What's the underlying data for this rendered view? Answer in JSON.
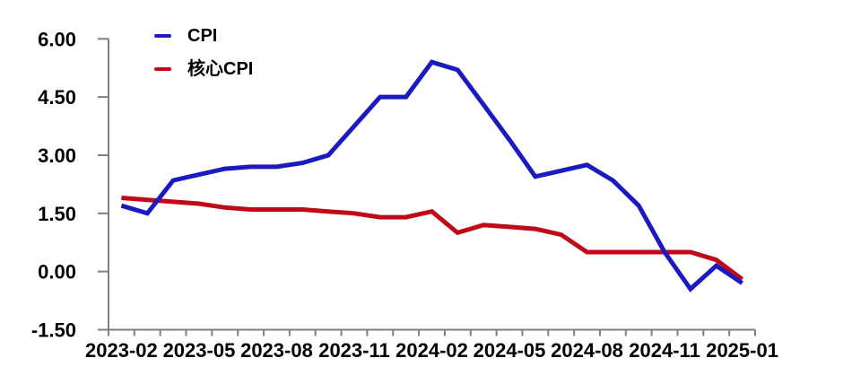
{
  "chart_data": {
    "type": "line",
    "title": "",
    "x_count": 25,
    "x_tick_labels": [
      {
        "index": 0,
        "label": "2023-02"
      },
      {
        "index": 3,
        "label": "2023-05"
      },
      {
        "index": 6,
        "label": "2023-08"
      },
      {
        "index": 9,
        "label": "2023-11"
      },
      {
        "index": 12,
        "label": "2024-02"
      },
      {
        "index": 15,
        "label": "2024-05"
      },
      {
        "index": 18,
        "label": "2024-08"
      },
      {
        "index": 21,
        "label": "2024-11"
      },
      {
        "index": 24,
        "label": "2025-01"
      }
    ],
    "y_ticks": [
      {
        "value": 6,
        "label": "6.00"
      },
      {
        "value": 4.5,
        "label": "4.50"
      },
      {
        "value": 3,
        "label": "3.00"
      },
      {
        "value": 1.5,
        "label": "1.50"
      },
      {
        "value": 0,
        "label": "0.00"
      },
      {
        "value": -1.5,
        "label": "-1.50"
      }
    ],
    "ylim": [
      -1.5,
      6
    ],
    "grid": false,
    "legend_position": "top-left-inside",
    "axis_color": "#7f7f7f",
    "text_color": "#000000",
    "series": [
      {
        "name": "CPI",
        "color": "#1b1ac1",
        "values": [
          1.7,
          1.5,
          2.35,
          2.5,
          2.65,
          2.7,
          2.7,
          2.8,
          3.0,
          3.75,
          4.5,
          4.5,
          5.4,
          5.2,
          4.3,
          3.4,
          2.45,
          2.6,
          2.75,
          2.35,
          1.7,
          0.5,
          -0.45,
          0.15,
          -0.3
        ]
      },
      {
        "name": "核心CPI",
        "color": "#c00a18",
        "values": [
          1.9,
          1.85,
          1.8,
          1.75,
          1.65,
          1.6,
          1.6,
          1.6,
          1.55,
          1.5,
          1.4,
          1.4,
          1.55,
          1.0,
          1.2,
          1.15,
          1.1,
          0.95,
          0.5,
          0.5,
          0.5,
          0.5,
          0.5,
          0.3,
          -0.2
        ]
      }
    ]
  }
}
